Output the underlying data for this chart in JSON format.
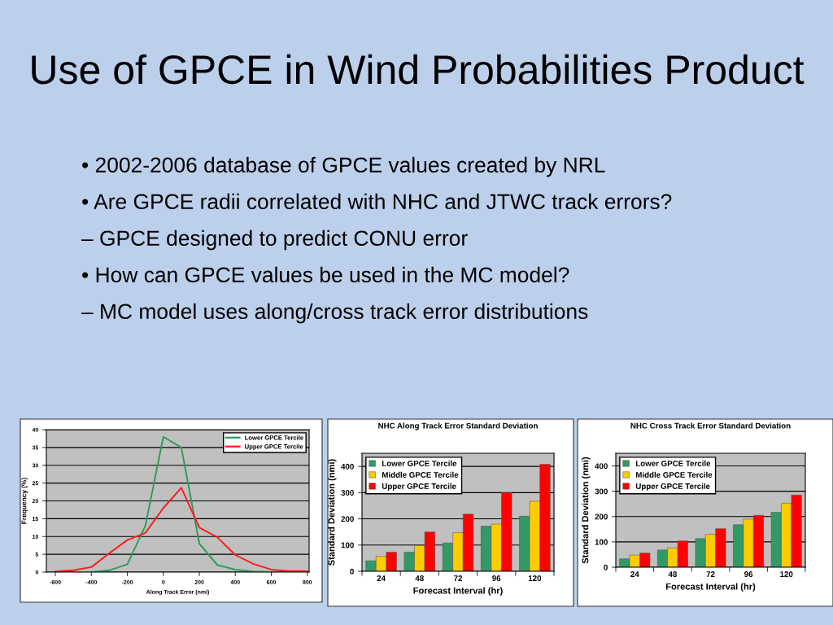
{
  "chart_data": [
    {
      "type": "other",
      "title": "Use of GPCE in Wind Probabilities Product",
      "annotations": [
        "• 2002-2006 database of GPCE values created by NRL",
        "• Are GPCE radii correlated with NHC and JTWC track errors?",
        "– GPCE designed to predict CONU error",
        "• How can GPCE values be used in the MC model?",
        "– MC model uses along/cross track error distributions"
      ]
    },
    {
      "type": "line",
      "xlabel": "Along Track Error (nmi)",
      "ylabel": "Frequency (%)",
      "x": [
        -600,
        -500,
        -400,
        -300,
        -200,
        -100,
        0,
        100,
        200,
        300,
        400,
        500,
        600,
        700,
        800
      ],
      "series": [
        {
          "name": "Lower GPCE Tercile",
          "color": "#2e9a5e",
          "values": [
            null,
            0,
            0,
            0.5,
            2.2,
            13,
            38,
            35,
            8,
            2,
            0.7,
            0.2,
            0,
            null,
            null
          ]
        },
        {
          "name": "Upper GPCE Tercile",
          "color": "#ff1a1a",
          "values": [
            0.2,
            0.5,
            1.4,
            5.3,
            9,
            11,
            18,
            23.7,
            12.5,
            9.8,
            4.8,
            2.3,
            0.7,
            0.3,
            0.3
          ]
        }
      ],
      "xlim": [
        -650,
        810
      ],
      "xticks": [
        -600,
        -400,
        -200,
        0,
        200,
        400,
        600,
        800
      ],
      "ylim": [
        0,
        40
      ],
      "yticks": [
        0,
        5,
        10,
        15,
        20,
        25,
        30,
        35,
        40
      ],
      "grid": "y",
      "legend": "top right",
      "marker": "none",
      "line_style": "solid"
    },
    {
      "type": "bar",
      "title": "NHC Along Track Error Standard Deviation",
      "xlabel": "Forecast Interval (hr)",
      "ylabel": "Standard Deviation (nmi)",
      "categories": [
        "24",
        "48",
        "72",
        "96",
        "120"
      ],
      "series": [
        {
          "name": "Lower GPCE Tercile",
          "color": "#339966",
          "values": [
            40,
            73,
            108,
            172,
            210
          ]
        },
        {
          "name": "Middle GPCE Tercile",
          "color": "#ffcc00",
          "values": [
            57,
            98,
            147,
            180,
            267
          ]
        },
        {
          "name": "Upper GPCE Tercile",
          "color": "#ff0000",
          "values": [
            73,
            150,
            218,
            300,
            408
          ]
        }
      ],
      "ylim": [
        0,
        450
      ],
      "yticks": [
        0,
        100,
        200,
        300,
        400
      ],
      "grid": "y",
      "legend": "top left"
    },
    {
      "type": "bar",
      "title": "NHC Cross Track Error Standard Deviation",
      "xlabel": "Forecast Interval (hr)",
      "ylabel": "Standard Deviation (nmi)",
      "categories": [
        "24",
        "48",
        "72",
        "96",
        "120"
      ],
      "series": [
        {
          "name": "Lower GPCE Tercile",
          "color": "#339966",
          "values": [
            33,
            68,
            113,
            168,
            217
          ]
        },
        {
          "name": "Middle GPCE Tercile",
          "color": "#ffcc00",
          "values": [
            48,
            76,
            130,
            190,
            253
          ]
        },
        {
          "name": "Upper GPCE Tercile",
          "color": "#ff0000",
          "values": [
            56,
            104,
            152,
            205,
            285
          ]
        }
      ],
      "ylim": [
        0,
        450
      ],
      "yticks": [
        0,
        100,
        200,
        300,
        400
      ],
      "grid": "y",
      "legend": "top left"
    }
  ]
}
